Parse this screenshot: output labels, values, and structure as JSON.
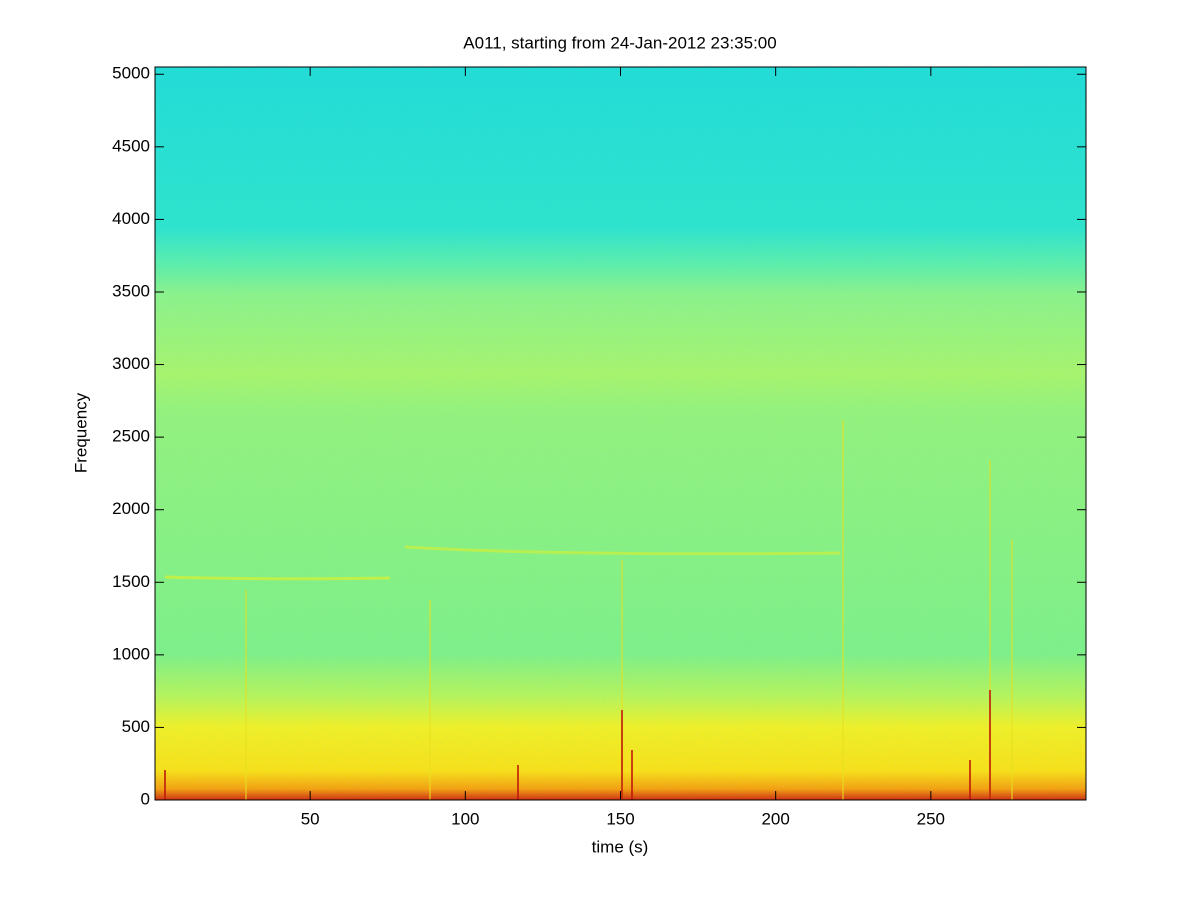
{
  "chart_data": {
    "type": "spectrogram",
    "title": "A011, starting from 24-Jan-2012 23:35:00",
    "x_label": "time (s)",
    "y_label": "Frequency",
    "xlim": [
      0,
      300
    ],
    "ylim": [
      0,
      5050
    ],
    "xticks": [
      50,
      100,
      150,
      200,
      250
    ],
    "yticks": [
      0,
      500,
      1000,
      1500,
      2000,
      2500,
      3000,
      3500,
      4000,
      4500,
      5000
    ]
  }
}
